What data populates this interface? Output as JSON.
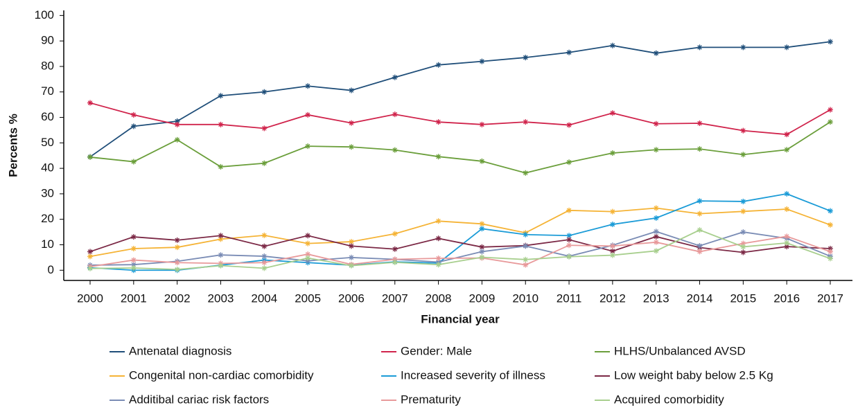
{
  "chart_data": {
    "type": "line",
    "x_label": "Financial year",
    "y_label": "Percents %",
    "categories": [
      "2000",
      "2001",
      "2002",
      "2003",
      "2004",
      "2005",
      "2006",
      "2007",
      "2008",
      "2009",
      "2010",
      "2011",
      "2012",
      "2013",
      "2014",
      "2015",
      "2016",
      "2017"
    ],
    "ylim": [
      -4,
      102
    ],
    "yticks": [
      0,
      10,
      20,
      30,
      40,
      50,
      60,
      70,
      80,
      90,
      100
    ],
    "series": [
      {
        "name": "Antenatal diagnosis",
        "color": "#1f4e79",
        "values": [
          44.5,
          56.5,
          58.5,
          68.5,
          70,
          72.3,
          70.6,
          75.7,
          80.6,
          82,
          83.5,
          85.5,
          88.2,
          85.2,
          87.5,
          87.5,
          87.5,
          89.7
        ]
      },
      {
        "name": "Gender: Male",
        "color": "#d0234b",
        "values": [
          65.7,
          61,
          57.2,
          57.2,
          55.7,
          61,
          57.8,
          61.2,
          58.2,
          57.2,
          58.2,
          57,
          61.7,
          57.5,
          57.7,
          54.8,
          53.3,
          63
        ]
      },
      {
        "name": "HLHS/Unbalanced AVSD",
        "color": "#6a9e3a",
        "values": [
          44.4,
          42.6,
          51.2,
          40.6,
          42,
          48.7,
          48.4,
          47.2,
          44.6,
          42.8,
          38.2,
          42.4,
          46,
          47.3,
          47.6,
          45.4,
          47.3,
          58.2
        ]
      },
      {
        "name": "Congenital non-cardiac comorbidity",
        "color": "#f5b335",
        "values": [
          5.4,
          8.5,
          9,
          12.2,
          13.7,
          10.5,
          11.2,
          14.3,
          19.3,
          18.2,
          14.7,
          23.5,
          23,
          24.4,
          22.2,
          23.1,
          24,
          17.8
        ]
      },
      {
        "name": "Increased severity of illness",
        "color": "#1a9bd7",
        "values": [
          1,
          0,
          0,
          2,
          4,
          3,
          2,
          3.3,
          2.8,
          16.3,
          14,
          13.6,
          18,
          20.5,
          27.2,
          27,
          30,
          23.3
        ]
      },
      {
        "name": "Low weight baby below 2.5 Kg",
        "color": "#7b2845",
        "values": [
          7.3,
          13.1,
          11.8,
          13.6,
          9.4,
          13.6,
          9.5,
          8.3,
          12.5,
          9.1,
          9.7,
          12,
          7.5,
          13.2,
          8.9,
          7,
          9.3,
          8.5
        ]
      },
      {
        "name": "Additibal cariac risk factors",
        "color": "#7a8cb5",
        "values": [
          2,
          2.2,
          3.5,
          6,
          5.5,
          3.7,
          5,
          4.3,
          3.2,
          7.3,
          9.5,
          5.5,
          9.8,
          15.2,
          9.6,
          15,
          12.5,
          5.5
        ]
      },
      {
        "name": "Prematurity",
        "color": "#e8999a",
        "values": [
          1.4,
          4,
          3,
          2.7,
          3,
          6.3,
          2.3,
          4.3,
          4.7,
          4.8,
          2.1,
          9.8,
          9.5,
          11,
          7.3,
          10.5,
          13.3,
          7.3
        ]
      },
      {
        "name": "Acquired comorbidity",
        "color": "#a8cf8e",
        "values": [
          0.7,
          0.9,
          0.3,
          1.8,
          0.8,
          4.8,
          1.8,
          3.1,
          2.2,
          5.1,
          4.2,
          5.3,
          5.9,
          7.6,
          15.8,
          9.2,
          10.7,
          4.6
        ]
      }
    ]
  }
}
